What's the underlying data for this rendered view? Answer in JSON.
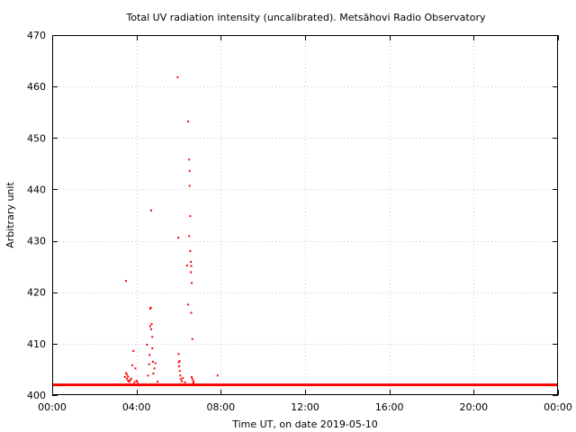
{
  "chart_data": {
    "type": "scatter",
    "title": "Total UV radiation intensity (uncalibrated). Metsähovi Radio Observatory",
    "xlabel": "Time UT, on date 2019-05-10",
    "ylabel": "Arbitrary unit",
    "xlim": [
      0,
      24
    ],
    "ylim": [
      400,
      470
    ],
    "x_ticks": [
      0,
      4,
      8,
      12,
      16,
      20,
      24
    ],
    "x_tick_labels": [
      "00:00",
      "04:00",
      "08:00",
      "12:00",
      "16:00",
      "20:00",
      "00:00"
    ],
    "y_ticks": [
      400,
      410,
      420,
      430,
      440,
      450,
      460,
      470
    ],
    "y_tick_labels": [
      "400",
      "410",
      "420",
      "430",
      "440",
      "450",
      "460",
      "470"
    ],
    "grid": true,
    "marker_color": "#ff0000",
    "baseline": {
      "value": 402,
      "x_start": 0,
      "x_end": 24
    },
    "series": [
      {
        "x": [
          3.45,
          3.5,
          3.5,
          3.55,
          3.55,
          3.6,
          3.6,
          3.65,
          3.7,
          3.75,
          3.8,
          3.85,
          3.9,
          3.95,
          4.0,
          4.05,
          4.5,
          4.55,
          4.6,
          4.62,
          4.65,
          4.65,
          4.68,
          4.7,
          4.7,
          4.72,
          4.75,
          4.75,
          4.78,
          4.8,
          4.85,
          4.9,
          5.0,
          5.95,
          5.98,
          6.0,
          6.0,
          6.02,
          6.05,
          6.05,
          6.08,
          6.1,
          6.15,
          6.2,
          6.3,
          6.4,
          6.45,
          6.45,
          6.5,
          6.5,
          6.52,
          6.52,
          6.55,
          6.55,
          6.58,
          6.58,
          6.6,
          6.6,
          6.62,
          6.62,
          6.65,
          6.65,
          6.7,
          6.7,
          7.85
        ],
        "y": [
          403.5,
          422.2,
          404.3,
          404.0,
          403.2,
          402.8,
          403.6,
          402.6,
          402.9,
          403.2,
          405.8,
          408.6,
          402.5,
          405.2,
          402.8,
          402.5,
          409.8,
          403.8,
          406.0,
          407.8,
          413.4,
          416.8,
          417.0,
          435.9,
          412.8,
          413.8,
          411.3,
          409.1,
          406.5,
          404.2,
          405.2,
          406.2,
          402.6,
          461.8,
          430.6,
          408.0,
          406.4,
          405.6,
          404.7,
          406.6,
          403.8,
          403.1,
          402.7,
          403.3,
          402.5,
          425.2,
          453.2,
          417.6,
          445.8,
          430.9,
          443.6,
          440.7,
          434.8,
          428.0,
          425.9,
          423.9,
          425.1,
          416.0,
          421.8,
          403.5,
          410.9,
          403.1,
          402.7,
          402.4,
          403.8
        ]
      }
    ]
  }
}
